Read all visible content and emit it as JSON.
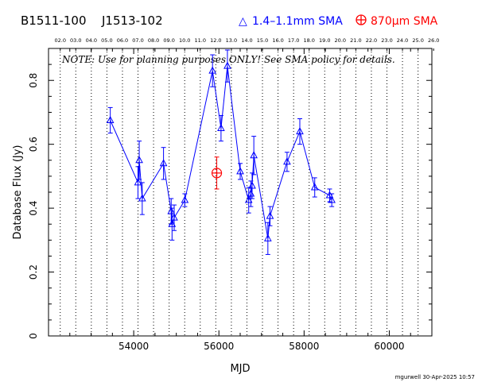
{
  "header": {
    "source_name": "B1511-100",
    "alt_name": "J1513-102",
    "legend_blue": "1.4–1.1mm SMA",
    "legend_red": "870μm SMA"
  },
  "note": "NOTE: Use for planning purposes ONLY! See SMA policy for details.",
  "footer": "mgurwell 30-Apr-2025 10:57",
  "colors": {
    "blue": "#0000ff",
    "red": "#ff0000",
    "axis": "#000000"
  },
  "chart_data": {
    "type": "scatter",
    "xlabel": "MJD",
    "ylabel": "Database Flux (Jy)",
    "xlim": [
      52000,
      61000
    ],
    "ylim": [
      0,
      0.9
    ],
    "x_ticks": [
      54000,
      56000,
      58000,
      60000
    ],
    "x_tick_labels": [
      "54000",
      "56000",
      "58000",
      "60000"
    ],
    "y_ticks": [
      0,
      0.2,
      0.4,
      0.6,
      0.8
    ],
    "y_tick_labels": [
      "0",
      "0.2",
      "0.4",
      "0.6",
      "0.8"
    ],
    "top_axis_labels": [
      "02.0",
      "03.0",
      "04.0",
      "05.0",
      "06.0",
      "07.0",
      "08.0",
      "09.0",
      "10.0",
      "11.0",
      "12.0",
      "13.0",
      "14.0",
      "15.0",
      "16.0",
      "17.0",
      "18.0",
      "19.0",
      "20.0",
      "21.0",
      "22.0",
      "23.0",
      "24.0",
      "25.0",
      "26.0"
    ],
    "top_axis_mjd": [
      52275,
      52640,
      53005,
      53371,
      53736,
      54101,
      54466,
      54832,
      55197,
      55562,
      55927,
      56293,
      56658,
      57023,
      57388,
      57754,
      58119,
      58484,
      58849,
      59215,
      59580,
      59945,
      60310,
      60676,
      61041
    ],
    "series": [
      {
        "name": "1.4–1.1mm SMA",
        "color": "#0000ff",
        "marker": "triangle",
        "connected": true,
        "points": [
          {
            "x": 53450,
            "y": 0.675,
            "err": 0.04
          },
          {
            "x": 54100,
            "y": 0.48,
            "err": 0.05
          },
          {
            "x": 54130,
            "y": 0.55,
            "err": 0.06
          },
          {
            "x": 54200,
            "y": 0.43,
            "err": 0.05
          },
          {
            "x": 54700,
            "y": 0.54,
            "err": 0.05
          },
          {
            "x": 54880,
            "y": 0.39,
            "err": 0.04
          },
          {
            "x": 54900,
            "y": 0.35,
            "err": 0.05
          },
          {
            "x": 54950,
            "y": 0.37,
            "err": 0.04
          },
          {
            "x": 55200,
            "y": 0.425,
            "err": 0.02
          },
          {
            "x": 55850,
            "y": 0.83,
            "err": 0.05
          },
          {
            "x": 56050,
            "y": 0.65,
            "err": 0.04
          },
          {
            "x": 56200,
            "y": 0.845,
            "err": 0.05
          },
          {
            "x": 56500,
            "y": 0.515,
            "err": 0.025
          },
          {
            "x": 56700,
            "y": 0.425,
            "err": 0.04
          },
          {
            "x": 56750,
            "y": 0.445,
            "err": 0.04
          },
          {
            "x": 56780,
            "y": 0.47,
            "err": 0.04
          },
          {
            "x": 56820,
            "y": 0.565,
            "err": 0.06
          },
          {
            "x": 57150,
            "y": 0.305,
            "err": 0.05
          },
          {
            "x": 57200,
            "y": 0.375,
            "err": 0.03
          },
          {
            "x": 57600,
            "y": 0.545,
            "err": 0.03
          },
          {
            "x": 57900,
            "y": 0.64,
            "err": 0.04
          },
          {
            "x": 58250,
            "y": 0.465,
            "err": 0.03
          },
          {
            "x": 58600,
            "y": 0.44,
            "err": 0.02
          },
          {
            "x": 58650,
            "y": 0.425,
            "err": 0.02
          }
        ]
      },
      {
        "name": "870μm SMA",
        "color": "#ff0000",
        "marker": "circle-plus",
        "connected": false,
        "points": [
          {
            "x": 55950,
            "y": 0.51,
            "err": 0.05
          }
        ]
      }
    ]
  }
}
